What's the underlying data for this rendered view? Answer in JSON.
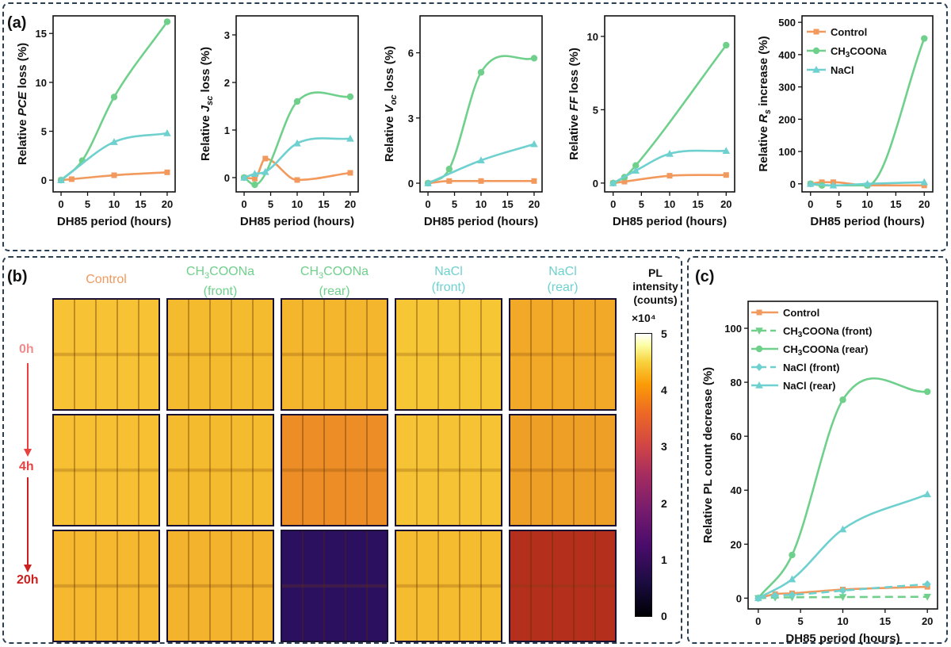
{
  "panels": {
    "a": "(a)",
    "b": "(b)",
    "c": "(c)"
  },
  "colors": {
    "control": "#f2995e",
    "ch3coona": "#6fd08c",
    "nacl": "#6fd1cf",
    "row_0h": "#f08c8c",
    "row_4h": "#e8413f",
    "row_20h": "#cc1f1f"
  },
  "chart_data": [
    {
      "type": "line",
      "ylabel_pre": "Relative ",
      "ylabel_var": "PCE",
      "ylabel_sub": "",
      "ylabel_post": " loss (%)",
      "xlabel": "DH85 period (hours)",
      "xlim": [
        -1.5,
        21.5
      ],
      "ylim": [
        -1.2,
        16.8
      ],
      "xticks": [
        0,
        5,
        10,
        15,
        20
      ],
      "yticks": [
        0,
        5,
        10,
        15
      ],
      "series": [
        {
          "name": "Control",
          "x": [
            0,
            2,
            10,
            20
          ],
          "values": [
            0,
            0.1,
            0.5,
            0.8
          ]
        },
        {
          "name": "CH3COONa",
          "x": [
            0,
            4,
            10,
            20
          ],
          "values": [
            0,
            2.0,
            8.5,
            16.2
          ]
        },
        {
          "name": "NaCl",
          "x": [
            0,
            10,
            20
          ],
          "values": [
            0,
            3.9,
            4.8
          ]
        }
      ]
    },
    {
      "type": "line",
      "ylabel_pre": "Relative ",
      "ylabel_var": "J",
      "ylabel_sub": "sc",
      "ylabel_post": " loss (%)",
      "xlabel": "DH85 period (hours)",
      "xlim": [
        -1.5,
        21.5
      ],
      "ylim": [
        -0.3,
        3.4
      ],
      "xticks": [
        0,
        5,
        10,
        15,
        20
      ],
      "yticks": [
        0,
        1,
        2,
        3
      ],
      "series": [
        {
          "name": "Control",
          "x": [
            0,
            2,
            4,
            10,
            20
          ],
          "values": [
            0,
            -0.02,
            0.4,
            -0.05,
            0.1
          ]
        },
        {
          "name": "CH3COONa",
          "x": [
            0,
            2,
            10,
            20
          ],
          "values": [
            0,
            -0.15,
            1.6,
            1.7
          ]
        },
        {
          "name": "NaCl",
          "x": [
            0,
            2,
            4,
            10,
            20
          ],
          "values": [
            0,
            0.08,
            0.12,
            0.72,
            0.82
          ]
        }
      ]
    },
    {
      "type": "line",
      "ylabel_pre": "Relative ",
      "ylabel_var": "V",
      "ylabel_sub": "oc",
      "ylabel_post": " loss (%)",
      "xlabel": "DH85 period (hours)",
      "xlim": [
        -1.5,
        21.5
      ],
      "ylim": [
        -0.4,
        7.7
      ],
      "xticks": [
        0,
        5,
        10,
        15,
        20
      ],
      "yticks": [
        0,
        3,
        6
      ],
      "series": [
        {
          "name": "Control",
          "x": [
            0,
            4,
            10,
            20
          ],
          "values": [
            0,
            0.1,
            0.1,
            0.1
          ]
        },
        {
          "name": "CH3COONa",
          "x": [
            0,
            4,
            10,
            20
          ],
          "values": [
            0,
            0.65,
            5.1,
            5.75
          ]
        },
        {
          "name": "NaCl",
          "x": [
            0,
            10,
            20
          ],
          "values": [
            0,
            1.05,
            1.8
          ]
        }
      ]
    },
    {
      "type": "line",
      "ylabel_pre": "Relative ",
      "ylabel_var": "FF",
      "ylabel_sub": "",
      "ylabel_post": " loss (%)",
      "xlabel": "DH85 period (hours)",
      "xlim": [
        -1.5,
        21.5
      ],
      "ylim": [
        -0.6,
        11.4
      ],
      "xticks": [
        0,
        5,
        10,
        15,
        20
      ],
      "yticks": [
        0,
        5,
        10
      ],
      "series": [
        {
          "name": "Control",
          "x": [
            0,
            2,
            10,
            20
          ],
          "values": [
            0,
            0.1,
            0.5,
            0.55
          ]
        },
        {
          "name": "CH3COONa",
          "x": [
            0,
            2,
            4,
            20
          ],
          "values": [
            0,
            0.4,
            1.2,
            9.4
          ]
        },
        {
          "name": "NaCl",
          "x": [
            0,
            4,
            10,
            20
          ],
          "values": [
            0,
            0.85,
            2.0,
            2.2
          ]
        }
      ]
    },
    {
      "type": "line",
      "ylabel_pre": "Relative ",
      "ylabel_var": "R",
      "ylabel_sub": "s",
      "ylabel_post": " increase (%)",
      "xlabel": "DH85 period (hours)",
      "xlim": [
        -1.5,
        21.5
      ],
      "ylim": [
        -25,
        520
      ],
      "xticks": [
        0,
        5,
        10,
        15,
        20
      ],
      "yticks": [
        0,
        100,
        200,
        300,
        400,
        500
      ],
      "legend": [
        "Control",
        "CH3COONa",
        "NaCl"
      ],
      "legend_position": "top-left",
      "series": [
        {
          "name": "Control",
          "x": [
            0,
            2,
            4,
            10,
            20
          ],
          "values": [
            0,
            5,
            5,
            -5,
            -5
          ]
        },
        {
          "name": "CH3COONa",
          "x": [
            0,
            2,
            10,
            20
          ],
          "values": [
            0,
            -5,
            -5,
            450
          ]
        },
        {
          "name": "NaCl",
          "x": [
            0,
            4,
            10,
            20
          ],
          "values": [
            0,
            -5,
            0,
            5
          ]
        }
      ]
    },
    {
      "type": "line",
      "ylabel": "Relative PL count decrease (%)",
      "xlabel": "DH85 period (hours)",
      "xlim": [
        -1.2,
        21.2
      ],
      "ylim": [
        -4,
        110
      ],
      "xticks": [
        0,
        5,
        10,
        15,
        20
      ],
      "yticks": [
        0,
        20,
        40,
        60,
        80,
        100
      ],
      "legend_position": "top-left",
      "series": [
        {
          "name": "Control",
          "x": [
            0,
            2,
            4,
            10,
            20
          ],
          "values": [
            0,
            1.5,
            1.8,
            3.2,
            4.2
          ]
        },
        {
          "name": "CH3COONa (front)",
          "x": [
            0,
            2,
            4,
            10,
            20
          ],
          "values": [
            0,
            0.2,
            0.3,
            0.4,
            0.5
          ]
        },
        {
          "name": "CH3COONa (rear)",
          "x": [
            0,
            4,
            10,
            20
          ],
          "values": [
            0,
            16,
            73.5,
            76.5
          ]
        },
        {
          "name": "NaCl (front)",
          "x": [
            0,
            2,
            4,
            10,
            20
          ],
          "values": [
            0,
            1.0,
            1.2,
            2.8,
            5.2
          ]
        },
        {
          "name": "NaCl (rear)",
          "x": [
            0,
            4,
            10,
            20
          ],
          "values": [
            0,
            7,
            25.5,
            38.5
          ]
        }
      ]
    }
  ],
  "pl_images": {
    "columns": [
      {
        "pre": "Control",
        "sub": "",
        "post": "",
        "line2": "",
        "color": "#f2995e"
      },
      {
        "pre": "CH",
        "sub": "3",
        "post": "COONa",
        "line2": "(front)",
        "color": "#6fd08c"
      },
      {
        "pre": "CH",
        "sub": "3",
        "post": "COONa",
        "line2": "(rear)",
        "color": "#6fd08c"
      },
      {
        "pre": "NaCl",
        "sub": "",
        "post": "",
        "line2": "(front)",
        "color": "#6fd1cf"
      },
      {
        "pre": "NaCl",
        "sub": "",
        "post": "",
        "line2": "(rear)",
        "color": "#6fd1cf"
      }
    ],
    "rows": [
      "0h",
      "4h",
      "20h"
    ],
    "tile_colors": [
      [
        "#f7c233",
        "#f5bb2e",
        "#f3b62c",
        "#f6c635",
        "#f2a928"
      ],
      [
        "#f6c032",
        "#f4bb2e",
        "#ec8e25",
        "#f5c333",
        "#ee9f26"
      ],
      [
        "#f5b82e",
        "#f3b32c",
        "#2c1060",
        "#f5bc2f",
        "#b5301c"
      ]
    ],
    "colorbar_title": [
      "PL",
      "intensity",
      "(counts)"
    ],
    "colorbar_exponent": "×10⁴",
    "colorbar_ticks": [
      "5",
      "4",
      "3",
      "2",
      "1",
      "0"
    ]
  }
}
